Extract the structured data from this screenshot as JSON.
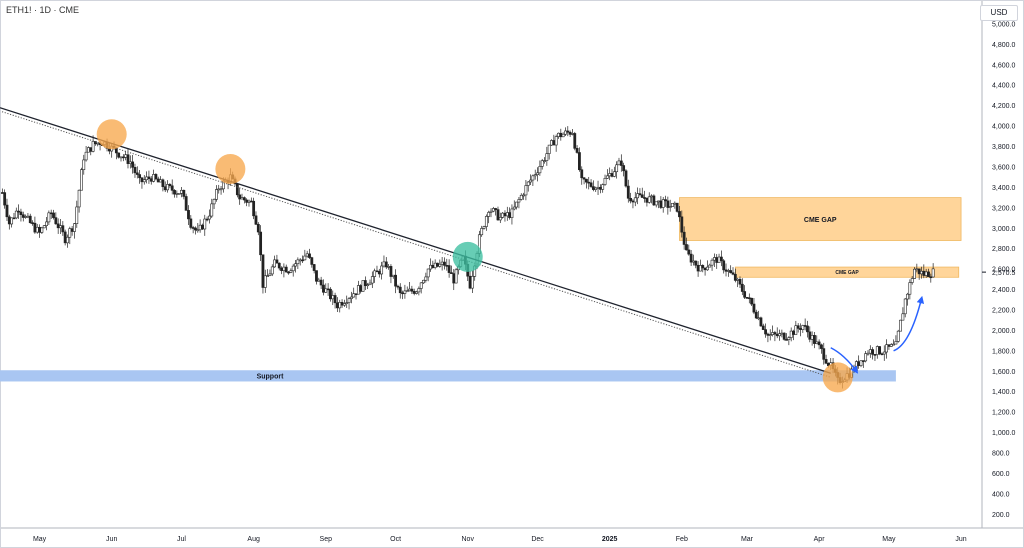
{
  "header": {
    "symbol": "ETH1! · 1D · CME",
    "currency": "USD"
  },
  "chart_data": {
    "type": "candlestick",
    "title": "",
    "y_axis_ticks": [
      "200.0",
      "400.0",
      "600.0",
      "800.0",
      "1,000.0",
      "1,200.0",
      "1,400.0",
      "1,600.0",
      "1,800.0",
      "2,000.0",
      "2,200.0",
      "2,400.0",
      "2,600.0",
      "2,800.0",
      "3,000.0",
      "3,200.0",
      "3,400.0",
      "3,600.0",
      "3,800.0",
      "4,000.0",
      "4,200.0",
      "4,400.0",
      "4,600.0",
      "4,800.0",
      "5,000.0"
    ],
    "ylim": [
      0,
      5300
    ],
    "x_axis_ticks": [
      "May",
      "Jun",
      "Jul",
      "Aug",
      "Sep",
      "Oct",
      "Nov",
      "Dec",
      "2025",
      "Feb",
      "Mar",
      "Apr",
      "May",
      "Jun"
    ],
    "x_range": [
      "2024-04-14",
      "2025-06-10"
    ],
    "last_price_label": "2,570.5",
    "last_price": 2570.5,
    "price_path": [
      {
        "date": "2024-04-15",
        "price": 3350
      },
      {
        "date": "2024-04-18",
        "price": 3050
      },
      {
        "date": "2024-04-22",
        "price": 3200
      },
      {
        "date": "2024-04-25",
        "price": 3100
      },
      {
        "date": "2024-05-01",
        "price": 2950
      },
      {
        "date": "2024-05-06",
        "price": 3150
      },
      {
        "date": "2024-05-12",
        "price": 2900
      },
      {
        "date": "2024-05-16",
        "price": 3050
      },
      {
        "date": "2024-05-20",
        "price": 3700
      },
      {
        "date": "2024-05-24",
        "price": 3820
      },
      {
        "date": "2024-05-28",
        "price": 3850
      },
      {
        "date": "2024-06-03",
        "price": 3750
      },
      {
        "date": "2024-06-09",
        "price": 3650
      },
      {
        "date": "2024-06-13",
        "price": 3450
      },
      {
        "date": "2024-06-18",
        "price": 3500
      },
      {
        "date": "2024-06-24",
        "price": 3400
      },
      {
        "date": "2024-07-01",
        "price": 3350
      },
      {
        "date": "2024-07-05",
        "price": 3050
      },
      {
        "date": "2024-07-08",
        "price": 2950
      },
      {
        "date": "2024-07-13",
        "price": 3150
      },
      {
        "date": "2024-07-17",
        "price": 3400
      },
      {
        "date": "2024-07-22",
        "price": 3500
      },
      {
        "date": "2024-07-26",
        "price": 3300
      },
      {
        "date": "2024-07-31",
        "price": 3250
      },
      {
        "date": "2024-08-03",
        "price": 3000
      },
      {
        "date": "2024-08-05",
        "price": 2450
      },
      {
        "date": "2024-08-10",
        "price": 2650
      },
      {
        "date": "2024-08-16",
        "price": 2600
      },
      {
        "date": "2024-08-24",
        "price": 2750
      },
      {
        "date": "2024-08-28",
        "price": 2500
      },
      {
        "date": "2024-09-06",
        "price": 2250
      },
      {
        "date": "2024-09-12",
        "price": 2350
      },
      {
        "date": "2024-09-20",
        "price": 2500
      },
      {
        "date": "2024-09-27",
        "price": 2650
      },
      {
        "date": "2024-10-03",
        "price": 2350
      },
      {
        "date": "2024-10-10",
        "price": 2400
      },
      {
        "date": "2024-10-15",
        "price": 2600
      },
      {
        "date": "2024-10-22",
        "price": 2650
      },
      {
        "date": "2024-10-26",
        "price": 2500
      },
      {
        "date": "2024-10-30",
        "price": 2700
      },
      {
        "date": "2024-11-02",
        "price": 2450
      },
      {
        "date": "2024-11-06",
        "price": 2900
      },
      {
        "date": "2024-11-10",
        "price": 3200
      },
      {
        "date": "2024-11-15",
        "price": 3100
      },
      {
        "date": "2024-11-20",
        "price": 3150
      },
      {
        "date": "2024-11-26",
        "price": 3400
      },
      {
        "date": "2024-12-03",
        "price": 3650
      },
      {
        "date": "2024-12-09",
        "price": 3900
      },
      {
        "date": "2024-12-16",
        "price": 3950
      },
      {
        "date": "2024-12-20",
        "price": 3450
      },
      {
        "date": "2024-12-27",
        "price": 3400
      },
      {
        "date": "2025-01-06",
        "price": 3650
      },
      {
        "date": "2025-01-09",
        "price": 3300
      },
      {
        "date": "2025-01-16",
        "price": 3300
      },
      {
        "date": "2025-01-22",
        "price": 3250
      },
      {
        "date": "2025-01-30",
        "price": 3200
      },
      {
        "date": "2025-02-03",
        "price": 2750
      },
      {
        "date": "2025-02-09",
        "price": 2600
      },
      {
        "date": "2025-02-16",
        "price": 2700
      },
      {
        "date": "2025-02-24",
        "price": 2500
      },
      {
        "date": "2025-03-03",
        "price": 2250
      },
      {
        "date": "2025-03-10",
        "price": 1950
      },
      {
        "date": "2025-03-18",
        "price": 1950
      },
      {
        "date": "2025-03-25",
        "price": 2050
      },
      {
        "date": "2025-04-02",
        "price": 1800
      },
      {
        "date": "2025-04-07",
        "price": 1600
      },
      {
        "date": "2025-04-09",
        "price": 1500
      },
      {
        "date": "2025-04-15",
        "price": 1600
      },
      {
        "date": "2025-04-22",
        "price": 1800
      },
      {
        "date": "2025-04-28",
        "price": 1800
      },
      {
        "date": "2025-05-04",
        "price": 1850
      },
      {
        "date": "2025-05-08",
        "price": 2300
      },
      {
        "date": "2025-05-12",
        "price": 2600
      },
      {
        "date": "2025-05-16",
        "price": 2550
      },
      {
        "date": "2025-05-20",
        "price": 2570
      }
    ],
    "trendline": {
      "start": {
        "date": "2024-04-14",
        "price": 4180
      },
      "end": {
        "date": "2025-04-06",
        "price": 1580
      }
    },
    "support_zone": {
      "label": "Support",
      "from_date": "2024-04-14",
      "to_date": "2025-05-04",
      "low": 1500,
      "high": 1610
    },
    "cme_gaps": [
      {
        "label": "CME GAP",
        "from_date": "2025-01-31",
        "to_date": "2025-06-01",
        "low": 2880,
        "high": 3300
      },
      {
        "label": "CME GAP",
        "from_date": "2025-02-24",
        "to_date": "2025-05-31",
        "low": 2520,
        "high": 2620
      }
    ],
    "highlight_circles": [
      {
        "date": "2024-06-01",
        "price": 3920,
        "color": "#f7a84d"
      },
      {
        "date": "2024-07-22",
        "price": 3580,
        "color": "#f7a84d"
      },
      {
        "date": "2024-11-01",
        "price": 2720,
        "color": "#3cbfa0"
      },
      {
        "date": "2025-04-09",
        "price": 1540,
        "color": "#f7a84d"
      }
    ],
    "projection_arrows": [
      {
        "points": [
          {
            "date": "2025-04-06",
            "price": 1830
          },
          {
            "date": "2025-04-12",
            "price": 1760
          },
          {
            "date": "2025-04-17",
            "price": 1600
          }
        ]
      },
      {
        "points": [
          {
            "date": "2025-05-03",
            "price": 1800
          },
          {
            "date": "2025-05-10",
            "price": 1860
          },
          {
            "date": "2025-05-15",
            "price": 2310
          }
        ]
      }
    ]
  }
}
